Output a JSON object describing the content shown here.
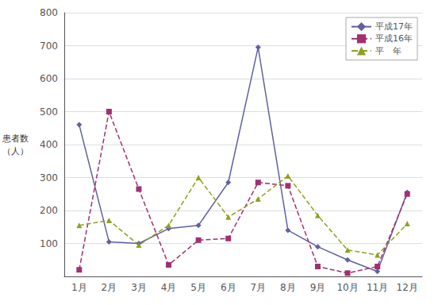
{
  "chart_data": {
    "type": "line",
    "categories": [
      "1月",
      "2月",
      "3月",
      "4月",
      "5月",
      "6月",
      "7月",
      "8月",
      "9月",
      "10月",
      "11月",
      "12月"
    ],
    "series": [
      {
        "name": "平成17年",
        "color": "#6060a0",
        "marker": "diamond",
        "line_style": "solid",
        "values": [
          460,
          105,
          100,
          145,
          155,
          285,
          695,
          140,
          90,
          50,
          15,
          255
        ]
      },
      {
        "name": "平成16年",
        "color": "#a03070",
        "marker": "square",
        "line_style": "dashed",
        "values": [
          20,
          500,
          265,
          35,
          110,
          115,
          285,
          275,
          30,
          10,
          30,
          250
        ]
      },
      {
        "name": "平　年",
        "color": "#90a020",
        "marker": "triangle",
        "line_style": "dashed",
        "values": [
          155,
          170,
          95,
          155,
          300,
          180,
          235,
          305,
          185,
          80,
          65,
          160
        ]
      }
    ],
    "ylabel": "患者数\n（人）",
    "ylim": [
      0,
      800
    ],
    "yticks": [
      {
        "value": 0,
        "label": ""
      },
      100,
      200,
      300,
      400,
      500,
      600,
      700,
      800
    ],
    "grid": true,
    "legend": "upper right"
  }
}
